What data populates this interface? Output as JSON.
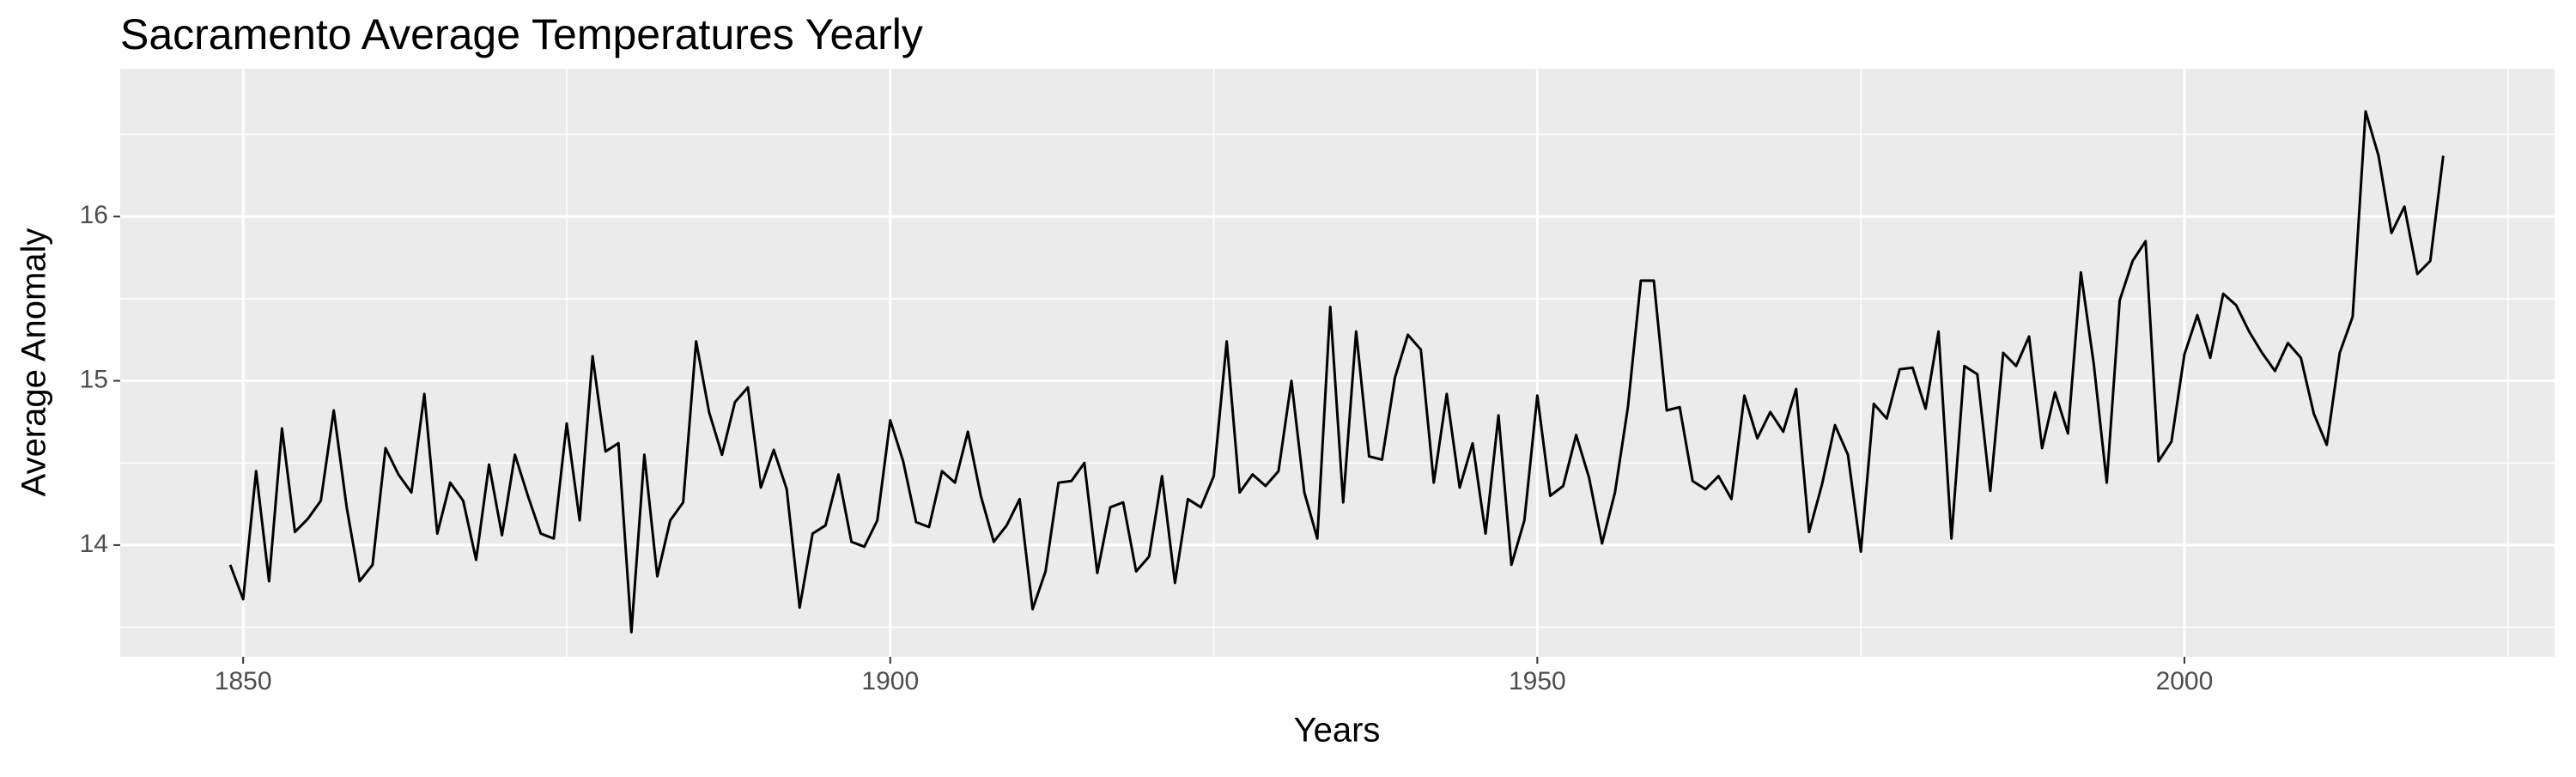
{
  "chart_data": {
    "type": "line",
    "title": "Sacramento Average Temperatures Yearly",
    "x_label": "Years",
    "y_label": "Average Anomaly",
    "color": "#000000",
    "grid": true,
    "xlim": [
      1840.5,
      2028.6
    ],
    "ylim": [
      13.32,
      16.9
    ],
    "xticks": [
      1850,
      1900,
      1950,
      2000
    ],
    "yticks": [
      14,
      15,
      16
    ],
    "xminor": [
      1875,
      1925,
      1975,
      2025
    ],
    "yminor": [
      13.5,
      14.5,
      15.5,
      16.5
    ],
    "x": [
      1849,
      1850,
      1851,
      1852,
      1853,
      1854,
      1855,
      1856,
      1857,
      1858,
      1859,
      1860,
      1861,
      1862,
      1863,
      1864,
      1865,
      1866,
      1867,
      1868,
      1869,
      1870,
      1871,
      1872,
      1873,
      1874,
      1875,
      1876,
      1877,
      1878,
      1879,
      1880,
      1881,
      1882,
      1883,
      1884,
      1885,
      1886,
      1887,
      1888,
      1889,
      1890,
      1891,
      1892,
      1893,
      1894,
      1895,
      1896,
      1897,
      1898,
      1899,
      1900,
      1901,
      1902,
      1903,
      1904,
      1905,
      1906,
      1907,
      1908,
      1909,
      1910,
      1911,
      1912,
      1913,
      1914,
      1915,
      1916,
      1917,
      1918,
      1919,
      1920,
      1921,
      1922,
      1923,
      1924,
      1925,
      1926,
      1927,
      1928,
      1929,
      1930,
      1931,
      1932,
      1933,
      1934,
      1935,
      1936,
      1937,
      1938,
      1939,
      1940,
      1941,
      1942,
      1943,
      1944,
      1945,
      1946,
      1947,
      1948,
      1949,
      1950,
      1951,
      1952,
      1953,
      1954,
      1955,
      1956,
      1957,
      1958,
      1959,
      1960,
      1961,
      1962,
      1963,
      1964,
      1965,
      1966,
      1967,
      1968,
      1969,
      1970,
      1971,
      1972,
      1973,
      1974,
      1975,
      1976,
      1977,
      1978,
      1979,
      1980,
      1981,
      1982,
      1983,
      1984,
      1985,
      1986,
      1987,
      1988,
      1989,
      1990,
      1991,
      1992,
      1993,
      1994,
      1995,
      1996,
      1997,
      1998,
      1999,
      2000,
      2001,
      2002,
      2003,
      2004,
      2005,
      2006,
      2007,
      2008,
      2009,
      2010,
      2011,
      2012,
      2013,
      2014,
      2015,
      2016,
      2017,
      2018,
      2019,
      2020
    ],
    "values": [
      13.88,
      13.67,
      14.45,
      13.78,
      14.71,
      14.08,
      14.16,
      14.27,
      14.82,
      14.23,
      13.78,
      13.88,
      14.59,
      14.43,
      14.32,
      14.92,
      14.07,
      14.38,
      14.27,
      13.91,
      14.49,
      14.06,
      14.55,
      14.3,
      14.07,
      14.04,
      14.74,
      14.15,
      15.15,
      14.57,
      14.62,
      13.47,
      14.55,
      13.81,
      14.15,
      14.26,
      15.24,
      14.81,
      14.55,
      14.87,
      14.96,
      14.35,
      14.58,
      14.34,
      13.62,
      14.07,
      14.12,
      14.43,
      14.02,
      13.99,
      14.15,
      14.76,
      14.51,
      14.14,
      14.11,
      14.45,
      14.38,
      14.69,
      14.3,
      14.02,
      14.12,
      14.28,
      13.61,
      13.84,
      14.38,
      14.39,
      14.5,
      13.83,
      14.23,
      14.26,
      13.84,
      13.93,
      14.42,
      13.77,
      14.28,
      14.23,
      14.42,
      15.24,
      14.32,
      14.43,
      14.36,
      14.45,
      15.0,
      14.32,
      14.04,
      15.45,
      14.26,
      15.3,
      14.54,
      14.52,
      15.02,
      15.28,
      15.19,
      14.38,
      14.92,
      14.35,
      14.62,
      14.07,
      14.79,
      13.88,
      14.15,
      14.91,
      14.3,
      14.36,
      14.67,
      14.41,
      14.01,
      14.32,
      14.84,
      15.61,
      15.61,
      14.82,
      14.84,
      14.39,
      14.34,
      14.42,
      14.28,
      14.91,
      14.65,
      14.81,
      14.69,
      14.95,
      14.08,
      14.37,
      14.73,
      14.55,
      13.96,
      14.86,
      14.77,
      15.07,
      15.08,
      14.83,
      15.3,
      14.04,
      15.09,
      15.04,
      14.33,
      15.17,
      15.09,
      15.27,
      14.59,
      14.93,
      14.68,
      15.66,
      15.1,
      14.38,
      15.49,
      15.73,
      15.85,
      14.51,
      14.63,
      15.16,
      15.4,
      15.14,
      15.53,
      15.46,
      15.3,
      15.17,
      15.06,
      15.23,
      15.14,
      14.8,
      14.61,
      15.17,
      15.39,
      16.64,
      16.37,
      15.9,
      16.06,
      15.65,
      15.73,
      16.37
    ]
  }
}
